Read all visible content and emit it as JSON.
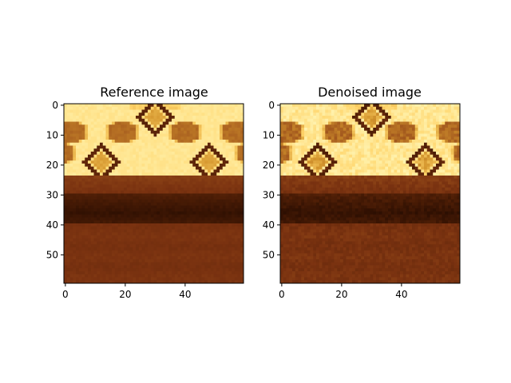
{
  "chart_data": [
    {
      "type": "heatmap",
      "title": "Reference image",
      "colormap": "afmhot-like",
      "colors": [
        "#1e0800",
        "#4e1e06",
        "#7a3210",
        "#a45a1e",
        "#d4962e",
        "#ffd46a",
        "#fff6b6"
      ],
      "x_ticks": [
        0,
        20,
        40
      ],
      "y_ticks": [
        0,
        10,
        20,
        30,
        40,
        50
      ],
      "xlim": [
        -0.5,
        59.5
      ],
      "ylim": [
        59.5,
        -0.5
      ],
      "grid": false,
      "variant": "reference"
    },
    {
      "type": "heatmap",
      "title": "Denoised image",
      "colormap": "afmhot-like",
      "colors": [
        "#1e0800",
        "#4e1e06",
        "#7a3210",
        "#a45a1e",
        "#d4962e",
        "#ffd46a",
        "#fff6b6"
      ],
      "x_ticks": [
        0,
        20,
        40
      ],
      "y_ticks": [
        0,
        10,
        20,
        30,
        40,
        50
      ],
      "xlim": [
        -0.5,
        59.5
      ],
      "ylim": [
        59.5,
        -0.5
      ],
      "grid": false,
      "variant": "denoised"
    }
  ]
}
